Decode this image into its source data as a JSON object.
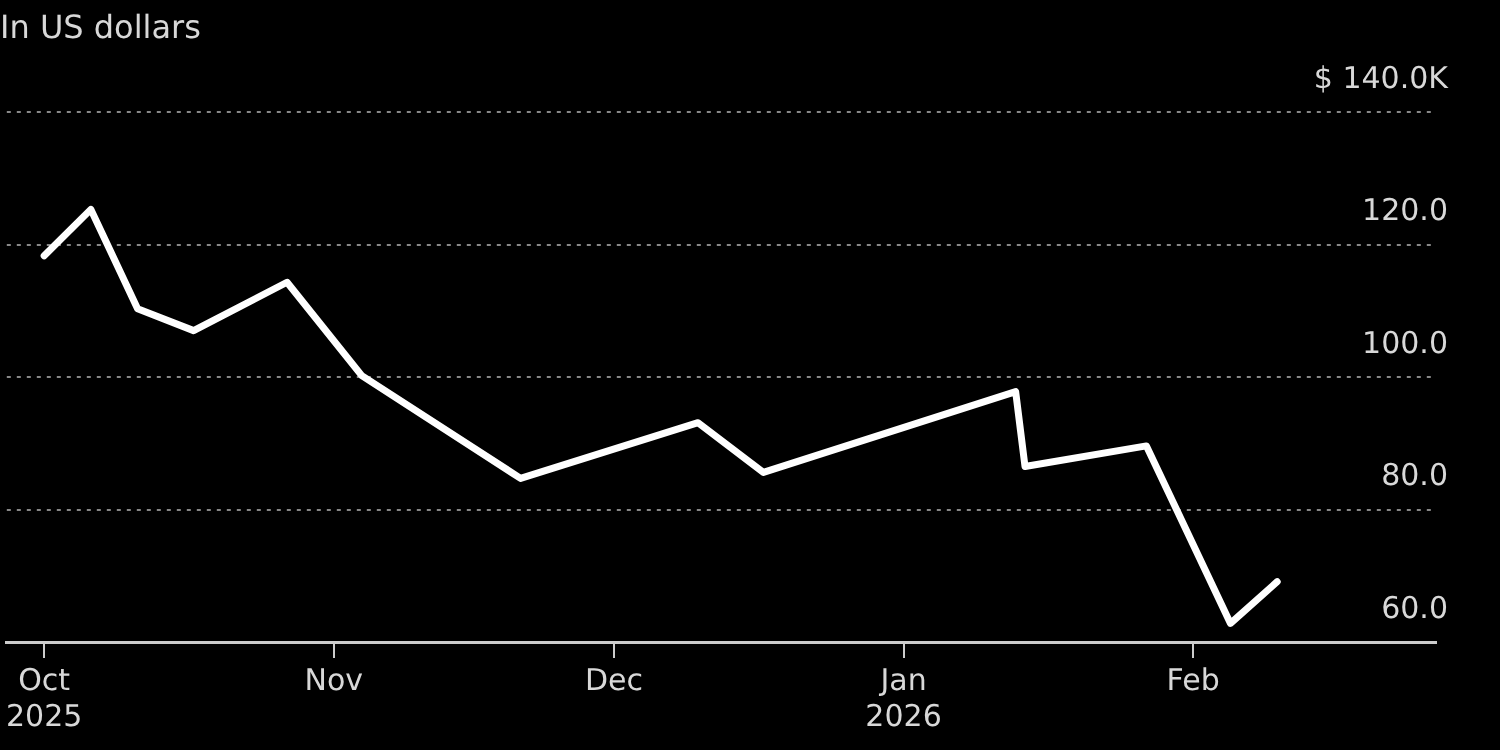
{
  "chart_data": {
    "type": "line",
    "subtitle": "In US dollars",
    "x": [
      "2025-10-01",
      "2025-10-06",
      "2025-10-11",
      "2025-10-17",
      "2025-10-27",
      "2025-11-04",
      "2025-11-21",
      "2025-12-10",
      "2025-12-17",
      "2026-01-13",
      "2026-01-14",
      "2026-01-27",
      "2026-02-05",
      "2026-02-10"
    ],
    "series": [
      {
        "color": "#ffffff",
        "values": [
          118.3,
          125.3,
          110.3,
          107.0,
          114.3,
          100.2,
          84.7,
          93.1,
          85.6,
          97.8,
          86.5,
          89.6,
          62.8,
          69.1
        ]
      }
    ],
    "xlim": [
      "2025-09-27",
      "2026-02-27"
    ],
    "xticks": [
      {
        "value": "2025-10-01",
        "label": "Oct 2025"
      },
      {
        "value": "2025-11-01",
        "label": "Nov"
      },
      {
        "value": "2025-12-01",
        "label": "Dec"
      },
      {
        "value": "2026-01-01",
        "label": "Jan 2026"
      },
      {
        "value": "2026-02-01",
        "label": "Feb"
      }
    ],
    "ylim": [
      60,
      140
    ],
    "yticks": [
      {
        "value": 60,
        "label": "60.0"
      },
      {
        "value": 80,
        "label": "80.0"
      },
      {
        "value": 100,
        "label": "100.0"
      },
      {
        "value": 120,
        "label": "120.0"
      },
      {
        "value": 140,
        "label": "$ 140.0K"
      }
    ],
    "grid": "y",
    "legend": false,
    "marker": "none",
    "line_style": "solid"
  }
}
